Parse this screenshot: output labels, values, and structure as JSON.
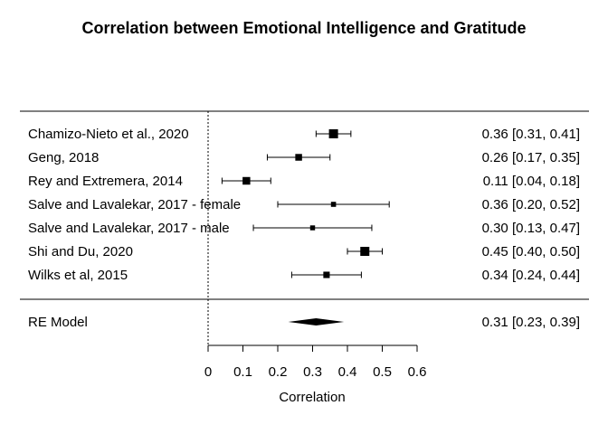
{
  "chart_data": {
    "type": "forest",
    "title": "Correlation between Emotional Intelligence and Gratitude",
    "xlabel": "Correlation",
    "xlim": [
      0,
      0.6
    ],
    "xticks": [
      "0",
      "0.1",
      "0.2",
      "0.3",
      "0.4",
      "0.5",
      "0.6"
    ],
    "reference_line": 0,
    "studies": [
      {
        "label": "Chamizo-Nieto et al., 2020",
        "estimate": 0.36,
        "ci_low": 0.31,
        "ci_high": 0.41,
        "text": "0.36 [0.31, 0.41]"
      },
      {
        "label": "Geng, 2018",
        "estimate": 0.26,
        "ci_low": 0.17,
        "ci_high": 0.35,
        "text": "0.26 [0.17, 0.35]"
      },
      {
        "label": "Rey and Extremera, 2014",
        "estimate": 0.11,
        "ci_low": 0.04,
        "ci_high": 0.18,
        "text": "0.11 [0.04, 0.18]"
      },
      {
        "label": "Salve and Lavalekar, 2017 - female",
        "estimate": 0.36,
        "ci_low": 0.2,
        "ci_high": 0.52,
        "text": "0.36 [0.20, 0.52]"
      },
      {
        "label": "Salve and Lavalekar, 2017 - male",
        "estimate": 0.3,
        "ci_low": 0.13,
        "ci_high": 0.47,
        "text": "0.30 [0.13, 0.47]"
      },
      {
        "label": "Shi and Du, 2020",
        "estimate": 0.45,
        "ci_low": 0.4,
        "ci_high": 0.5,
        "text": "0.45 [0.40, 0.50]"
      },
      {
        "label": "Wilks et al, 2015",
        "estimate": 0.34,
        "ci_low": 0.24,
        "ci_high": 0.44,
        "text": "0.34 [0.24, 0.44]"
      }
    ],
    "summary": {
      "label": "RE Model",
      "estimate": 0.31,
      "ci_low": 0.23,
      "ci_high": 0.39,
      "text": "0.31 [0.23, 0.39]"
    }
  }
}
